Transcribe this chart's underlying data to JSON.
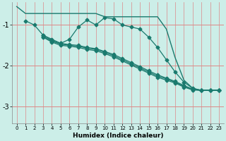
{
  "xlabel": "Humidex (Indice chaleur)",
  "bg_color": "#cceee8",
  "line_color": "#1a7a6e",
  "xlim": [
    -0.5,
    23.5
  ],
  "ylim": [
    -3.4,
    -0.45
  ],
  "yticks": [
    -3,
    -2,
    -1
  ],
  "xticks": [
    0,
    1,
    2,
    3,
    4,
    5,
    6,
    7,
    8,
    9,
    10,
    11,
    12,
    13,
    14,
    15,
    16,
    17,
    18,
    19,
    20,
    21,
    22,
    23
  ],
  "lines": [
    {
      "x": [
        0,
        1,
        2,
        3,
        4,
        5,
        6,
        7,
        8,
        9,
        10,
        11,
        12,
        13,
        14,
        15,
        16,
        17,
        18,
        19,
        20,
        21,
        22,
        23
      ],
      "y": [
        -0.55,
        -0.72,
        -0.72,
        -0.72,
        -0.72,
        -0.72,
        -0.72,
        -0.72,
        -0.72,
        -0.72,
        -0.8,
        -0.8,
        -0.8,
        -0.8,
        -0.8,
        -0.8,
        -0.8,
        -1.1,
        -1.8,
        -2.35,
        -2.55,
        -2.6,
        -2.6,
        -2.6
      ],
      "marker": false,
      "lw": 1.0
    },
    {
      "x": [
        1,
        2,
        3,
        4,
        5,
        6,
        7,
        8,
        9,
        10,
        11,
        12,
        13,
        14,
        15,
        16,
        17,
        18,
        19,
        20,
        21,
        22,
        23
      ],
      "y": [
        -0.9,
        -1.0,
        -1.25,
        -1.35,
        -1.45,
        -1.35,
        -1.05,
        -0.88,
        -1.0,
        -0.82,
        -0.85,
        -1.0,
        -1.05,
        -1.1,
        -1.3,
        -1.55,
        -1.85,
        -2.15,
        -2.4,
        -2.55,
        -2.6,
        -2.6,
        -2.6
      ],
      "marker": true,
      "lw": 0.9
    },
    {
      "x": [
        3,
        4,
        5,
        6,
        7,
        8,
        9,
        10,
        11,
        12,
        13,
        14,
        15,
        16,
        17,
        18,
        19,
        20,
        21,
        22,
        23
      ],
      "y": [
        -1.25,
        -1.38,
        -1.45,
        -1.48,
        -1.5,
        -1.55,
        -1.58,
        -1.65,
        -1.72,
        -1.82,
        -1.92,
        -2.02,
        -2.12,
        -2.22,
        -2.3,
        -2.38,
        -2.48,
        -2.57,
        -2.6,
        -2.6,
        -2.6
      ],
      "marker": true,
      "lw": 0.9
    },
    {
      "x": [
        3,
        4,
        5,
        6,
        7,
        8,
        9,
        10,
        11,
        12,
        13,
        14,
        15,
        16,
        17,
        18,
        19,
        20,
        21,
        22,
        23
      ],
      "y": [
        -1.3,
        -1.42,
        -1.5,
        -1.52,
        -1.55,
        -1.6,
        -1.63,
        -1.7,
        -1.78,
        -1.88,
        -1.98,
        -2.08,
        -2.18,
        -2.28,
        -2.35,
        -2.42,
        -2.52,
        -2.59,
        -2.6,
        -2.6,
        -2.6
      ],
      "marker": true,
      "lw": 0.9
    },
    {
      "x": [
        3,
        4,
        5,
        6,
        7,
        8,
        9,
        10,
        11,
        12,
        13,
        14,
        15,
        16,
        17,
        18,
        19,
        20,
        21,
        22,
        23
      ],
      "y": [
        -1.28,
        -1.4,
        -1.47,
        -1.5,
        -1.52,
        -1.57,
        -1.6,
        -1.67,
        -1.75,
        -1.85,
        -1.95,
        -2.05,
        -2.15,
        -2.25,
        -2.32,
        -2.4,
        -2.5,
        -2.58,
        -2.6,
        -2.6,
        -2.6
      ],
      "marker": true,
      "lw": 0.9
    }
  ]
}
